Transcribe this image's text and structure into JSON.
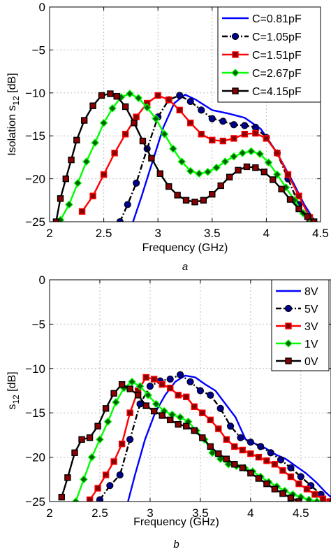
{
  "chart_data": [
    {
      "type": "line",
      "xlabel": "Frequency (GHz)",
      "ylabel": "Isolation s12 [dB]",
      "ylabel_main": "Isolation s",
      "ylabel_sub": "12",
      "ylabel_unit": " [dB]",
      "xlim": [
        2,
        4.5
      ],
      "ylim": [
        -25,
        0
      ],
      "x_ticks": [
        "2",
        "2.5",
        "3",
        "3.5",
        "4",
        "4.5"
      ],
      "y_ticks": [
        "0",
        "−5",
        "−10",
        "−15",
        "−20",
        "−25"
      ],
      "grid": true,
      "legend_position": "top-right",
      "caption": "a",
      "series": [
        {
          "name": "C=0.81pF",
          "color": "#0000ff",
          "marker": "none",
          "line": "solid",
          "x": [
            2.77,
            2.85,
            2.95,
            3.05,
            3.15,
            3.25,
            3.35,
            3.5,
            3.65,
            3.8,
            3.95,
            4.1,
            4.25,
            4.35,
            4.45
          ],
          "y": [
            -25,
            -22,
            -18,
            -14,
            -11.2,
            -10.2,
            -10.8,
            -12,
            -12.4,
            -12.9,
            -14.2,
            -17,
            -20.5,
            -23,
            -25
          ]
        },
        {
          "name": "C=1.05pF",
          "color": "#000000",
          "marker": "circle",
          "line": "dashdot",
          "x": [
            2.65,
            2.72,
            2.8,
            2.9,
            3.0,
            3.1,
            3.2,
            3.3,
            3.4,
            3.5,
            3.6,
            3.7,
            3.8,
            3.9,
            4.0,
            4.1,
            4.2,
            4.3,
            4.4
          ],
          "y": [
            -25,
            -23,
            -20.5,
            -16.5,
            -12.8,
            -10.8,
            -10.3,
            -11,
            -12,
            -13,
            -13.3,
            -13.7,
            -13.8,
            -14,
            -15.2,
            -17,
            -20,
            -23,
            -25
          ]
        },
        {
          "name": "C=1.51pF",
          "color": "#ff0000",
          "marker": "square",
          "line": "solid",
          "x": [
            2.3,
            2.4,
            2.5,
            2.6,
            2.7,
            2.8,
            2.9,
            3.0,
            3.1,
            3.2,
            3.3,
            3.4,
            3.5,
            3.6,
            3.7,
            3.8,
            3.9,
            4.0,
            4.1,
            4.2,
            4.3,
            4.4
          ],
          "y": [
            -23.8,
            -22,
            -19.5,
            -17,
            -14.8,
            -12.8,
            -11.2,
            -10.3,
            -10.8,
            -12,
            -13.5,
            -14.8,
            -15.5,
            -15.6,
            -15.3,
            -14.8,
            -14.7,
            -15.3,
            -17,
            -19.5,
            -22,
            -24.5
          ]
        },
        {
          "name": "C=2.67pF",
          "color": "#00ff00",
          "marker": "diamond",
          "line": "solid",
          "x": [
            2.1,
            2.18,
            2.26,
            2.34,
            2.42,
            2.5,
            2.58,
            2.66,
            2.74,
            2.82,
            2.9,
            2.98,
            3.06,
            3.14,
            3.22,
            3.3,
            3.38,
            3.46,
            3.54,
            3.62,
            3.7,
            3.78,
            3.86,
            3.94,
            4.02,
            4.1,
            4.18,
            4.26,
            4.34,
            4.42
          ],
          "y": [
            -24.8,
            -23,
            -20.5,
            -18,
            -15.8,
            -13.5,
            -11.8,
            -10.5,
            -10.1,
            -10.6,
            -11.7,
            -13,
            -14.8,
            -16.5,
            -18,
            -19.1,
            -19.4,
            -19.2,
            -18.7,
            -18,
            -17.4,
            -17,
            -16.8,
            -17.1,
            -18.1,
            -19.5,
            -21,
            -22.5,
            -24,
            -25
          ]
        },
        {
          "name": "C=4.15pF",
          "color": "#000000",
          "marker": "square",
          "line": "solid",
          "x": [
            2.06,
            2.1,
            2.15,
            2.2,
            2.25,
            2.32,
            2.4,
            2.48,
            2.56,
            2.62,
            2.7,
            2.78,
            2.86,
            2.94,
            3.02,
            3.1,
            3.18,
            3.26,
            3.34,
            3.42,
            3.5,
            3.58,
            3.66,
            3.74,
            3.82,
            3.9,
            3.98,
            4.06,
            4.14,
            4.22,
            4.3,
            4.38,
            4.44
          ],
          "y": [
            -25,
            -22.3,
            -20,
            -17.8,
            -15.5,
            -13.2,
            -11.5,
            -10.3,
            -10.1,
            -10.4,
            -11.6,
            -13.5,
            -15.6,
            -17.6,
            -19.4,
            -20.9,
            -21.9,
            -22.5,
            -22.7,
            -22.5,
            -21.8,
            -20.8,
            -19.8,
            -19,
            -18.6,
            -18.7,
            -19.2,
            -20.1,
            -21.2,
            -22.4,
            -23.5,
            -24.4,
            -25
          ]
        }
      ]
    },
    {
      "type": "line",
      "xlabel": "Frequency (GHz)",
      "ylabel": "s12 [dB]",
      "ylabel_main": "s",
      "ylabel_sub": "12",
      "ylabel_unit": " [dB]",
      "xlim": [
        2,
        4.8
      ],
      "ylim": [
        -25,
        0
      ],
      "x_ticks": [
        "2",
        "2.5",
        "3",
        "3.5",
        "4",
        "4.5"
      ],
      "y_ticks": [
        "0",
        "−5",
        "−10",
        "−15",
        "−20",
        "−25"
      ],
      "grid": true,
      "legend_position": "top-right",
      "caption": "b",
      "series": [
        {
          "name": "8V",
          "color": "#0000ff",
          "marker": "none",
          "line": "solid",
          "x": [
            2.78,
            2.85,
            2.95,
            3.05,
            3.15,
            3.25,
            3.35,
            3.45,
            3.55,
            3.65,
            3.75,
            3.85,
            3.95,
            4.05,
            4.15,
            4.25,
            4.35,
            4.45,
            4.55,
            4.65,
            4.75,
            4.8
          ],
          "y": [
            -25,
            -22,
            -18,
            -15,
            -13,
            -11.5,
            -10.8,
            -11,
            -11.8,
            -12.5,
            -14,
            -15.5,
            -18,
            -18.5,
            -19,
            -19.7,
            -20.2,
            -21,
            -21.8,
            -22.8,
            -24,
            -24.5
          ]
        },
        {
          "name": "5V",
          "color": "#000000",
          "marker": "circle",
          "line": "dashdot",
          "x": [
            2.5,
            2.6,
            2.7,
            2.8,
            2.9,
            3.0,
            3.1,
            3.2,
            3.3,
            3.4,
            3.5,
            3.6,
            3.7,
            3.8,
            3.9,
            4.0,
            4.1,
            4.2,
            4.3,
            4.4,
            4.5,
            4.6,
            4.7,
            4.8
          ],
          "y": [
            -24.8,
            -23.2,
            -22,
            -18,
            -14,
            -12,
            -11.4,
            -11.2,
            -10.7,
            -11.5,
            -12.5,
            -13,
            -14.5,
            -16.5,
            -17.8,
            -18.3,
            -18.8,
            -19.5,
            -20.3,
            -21.2,
            -22.2,
            -23.2,
            -24.2,
            -25
          ]
        },
        {
          "name": "3V",
          "color": "#ff0000",
          "marker": "square",
          "line": "solid",
          "x": [
            2.4,
            2.48,
            2.56,
            2.64,
            2.72,
            2.8,
            2.88,
            2.96,
            3.04,
            3.12,
            3.2,
            3.28,
            3.36,
            3.44,
            3.52,
            3.6,
            3.68,
            3.76,
            3.84,
            3.92,
            4.0,
            4.08,
            4.16,
            4.24,
            4.32,
            4.4,
            4.48,
            4.56,
            4.64,
            4.72,
            4.8
          ],
          "y": [
            -24.8,
            -23.5,
            -22,
            -20.5,
            -18.5,
            -15,
            -12.5,
            -11,
            -11.2,
            -11.8,
            -12.2,
            -13,
            -13.2,
            -14.3,
            -15,
            -15.8,
            -16.8,
            -18,
            -18.8,
            -19.2,
            -19.6,
            -20,
            -20.4,
            -20.8,
            -21.5,
            -22.2,
            -23,
            -23.6,
            -24.2,
            -24.7,
            -25
          ]
        },
        {
          "name": "1V",
          "color": "#00ff00",
          "marker": "diamond",
          "line": "solid",
          "x": [
            2.26,
            2.34,
            2.42,
            2.5,
            2.58,
            2.66,
            2.74,
            2.82,
            2.9,
            2.98,
            3.06,
            3.14,
            3.22,
            3.3,
            3.38,
            3.46,
            3.54,
            3.62,
            3.7,
            3.78,
            3.86,
            3.94,
            4.02,
            4.1,
            4.18,
            4.26,
            4.34,
            4.42,
            4.5,
            4.58,
            4.66
          ],
          "y": [
            -25,
            -22.5,
            -20,
            -18,
            -16,
            -13.8,
            -12.2,
            -11.5,
            -12,
            -13,
            -14,
            -14.8,
            -15.2,
            -15.5,
            -16,
            -17,
            -18,
            -19.5,
            -20.2,
            -20.8,
            -21,
            -21.2,
            -21.6,
            -22.2,
            -22.8,
            -23.3,
            -23.8,
            -24.2,
            -24.5,
            -24.8,
            -25
          ]
        },
        {
          "name": "0V",
          "color": "#000000",
          "marker": "square",
          "line": "solid",
          "x": [
            2.12,
            2.18,
            2.25,
            2.32,
            2.4,
            2.48,
            2.56,
            2.64,
            2.72,
            2.8,
            2.88,
            2.96,
            3.04,
            3.12,
            3.2,
            3.28,
            3.36,
            3.44,
            3.52,
            3.6,
            3.68,
            3.76,
            3.84,
            3.92,
            4.0,
            4.08,
            4.16,
            4.24,
            4.32,
            4.4,
            4.48
          ],
          "y": [
            -24.5,
            -22.3,
            -19.5,
            -18,
            -17.8,
            -16.5,
            -14.5,
            -12.8,
            -11.8,
            -12.3,
            -13,
            -14.2,
            -14.8,
            -15.3,
            -15.8,
            -16.3,
            -16.5,
            -17,
            -17.8,
            -18.8,
            -19.6,
            -20.2,
            -20.8,
            -21.2,
            -21.8,
            -22.4,
            -23,
            -23.6,
            -24.1,
            -24.6,
            -25
          ]
        }
      ]
    }
  ]
}
